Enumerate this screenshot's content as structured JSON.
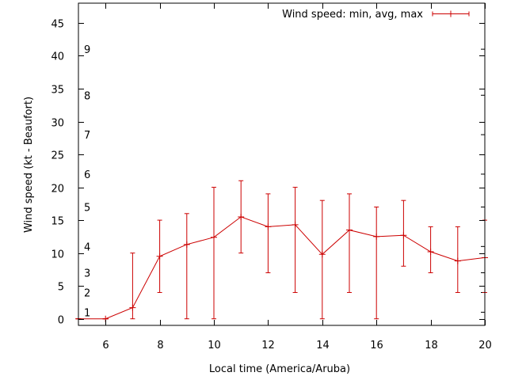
{
  "chart_data": {
    "type": "line",
    "title": "",
    "xlabel": "Local time (America/Aruba)",
    "ylabel": "Wind speed (kt - Beaufort)",
    "xlim": [
      5,
      20
    ],
    "ylim": [
      -1,
      48
    ],
    "x_ticks": [
      6,
      8,
      10,
      12,
      14,
      16,
      18,
      20
    ],
    "y_ticks": [
      0,
      5,
      10,
      15,
      20,
      25,
      30,
      35,
      40,
      45
    ],
    "grid": false,
    "legend_position": "top-right",
    "series": [
      {
        "name": "Wind speed: min, avg, max",
        "color": "#cc0000",
        "x": [
          5,
          6,
          7,
          8,
          9,
          10,
          11,
          12,
          13,
          14,
          15,
          16,
          17,
          18,
          19,
          20
        ],
        "avg": [
          0,
          0,
          1.7,
          9.5,
          11.3,
          12.4,
          15.5,
          14.0,
          14.3,
          9.8,
          13.5,
          12.5,
          12.7,
          10.2,
          8.8,
          9.3
        ],
        "min": [
          0,
          0,
          0,
          4,
          0,
          0,
          10,
          7,
          4,
          0,
          4,
          0,
          8,
          7,
          4,
          4
        ],
        "max": [
          0,
          0,
          10,
          15,
          16,
          20,
          21,
          19,
          20,
          18,
          19,
          17,
          18,
          14,
          14,
          15
        ]
      }
    ],
    "beaufort_scale": [
      {
        "label": "1",
        "value": 1
      },
      {
        "label": "2",
        "value": 4
      },
      {
        "label": "3",
        "value": 7
      },
      {
        "label": "4",
        "value": 11
      },
      {
        "label": "5",
        "value": 17
      },
      {
        "label": "6",
        "value": 22
      },
      {
        "label": "7",
        "value": 28
      },
      {
        "label": "8",
        "value": 34
      },
      {
        "label": "9",
        "value": 41
      }
    ]
  }
}
